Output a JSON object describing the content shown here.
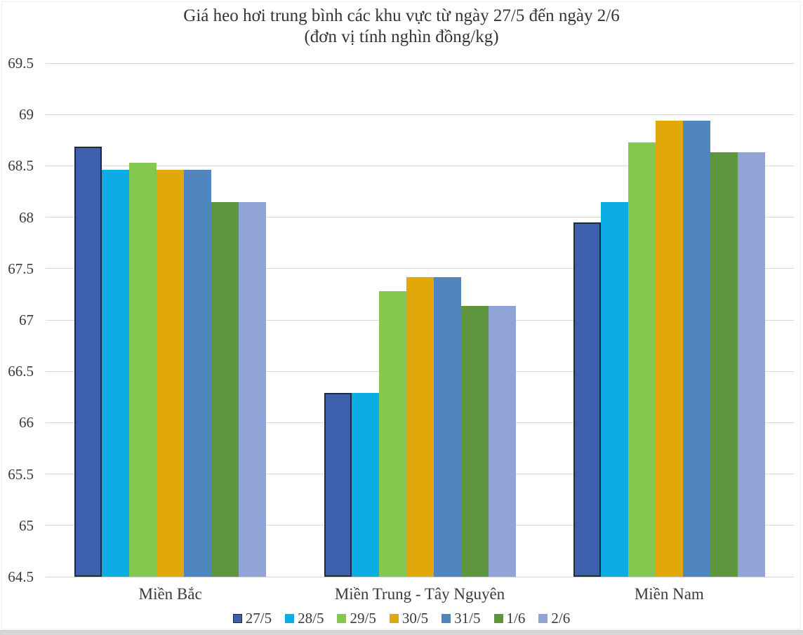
{
  "chart_data": {
    "type": "bar",
    "title": "Giá heo hơi trung bình các khu vực từ ngày 27/5 đến ngày 2/6",
    "subtitle": "(đơn vị tính nghìn đồng/kg)",
    "categories": [
      "Miền Bắc",
      "Miền Trung - Tây Nguyên",
      "Miền Nam"
    ],
    "series": [
      {
        "name": "27/5",
        "color": "#3d5fac",
        "border_color": "#1d2b3f",
        "values": [
          68.69,
          66.29,
          67.95
        ]
      },
      {
        "name": "28/5",
        "color": "#0cade5",
        "values": [
          68.46,
          66.29,
          68.15
        ]
      },
      {
        "name": "29/5",
        "color": "#85c850",
        "values": [
          68.53,
          67.28,
          68.73
        ]
      },
      {
        "name": "30/5",
        "color": "#e2a70b",
        "values": [
          68.46,
          67.42,
          68.94
        ]
      },
      {
        "name": "31/5",
        "color": "#4f86bd",
        "values": [
          68.46,
          67.42,
          68.94
        ]
      },
      {
        "name": "1/6",
        "color": "#5d963e",
        "values": [
          68.15,
          67.14,
          68.63
        ]
      },
      {
        "name": "2/6",
        "color": "#92a4d6",
        "values": [
          68.15,
          67.14,
          68.63
        ]
      }
    ],
    "ylim": [
      64.5,
      69.5
    ],
    "ytick_step": 0.5,
    "ytick_labels": [
      "64.5",
      "65",
      "65.5",
      "66",
      "66.5",
      "67",
      "67.5",
      "68",
      "68.5",
      "69",
      "69.5"
    ],
    "grid": true,
    "legend_position": "bottom",
    "gridline_color": "#d8d8d8",
    "text_color": "#3a3a3a",
    "background_color": "#ffffff"
  }
}
